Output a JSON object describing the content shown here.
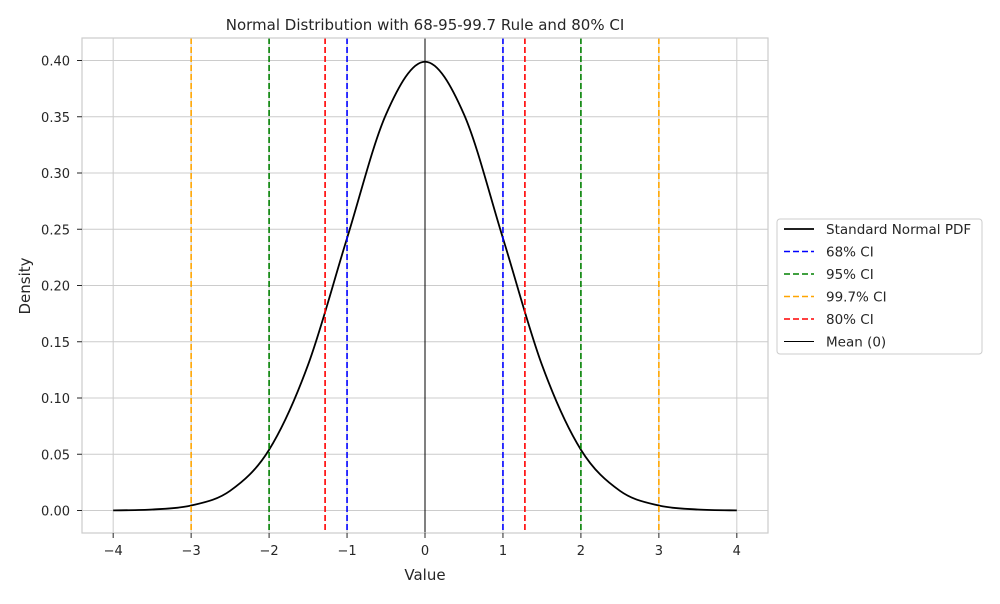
{
  "chart_data": {
    "type": "line",
    "title": "Normal Distribution with 68-95-99.7 Rule and 80% CI",
    "xlabel": "Value",
    "ylabel": "Density",
    "xlim": [
      -4.4,
      4.4
    ],
    "ylim": [
      -0.02,
      0.42
    ],
    "xticks": [
      -4,
      -3,
      -2,
      -1,
      0,
      1,
      2,
      3,
      4
    ],
    "xtick_labels": [
      "−4",
      "−3",
      "−2",
      "−1",
      "0",
      "1",
      "2",
      "3",
      "4"
    ],
    "yticks": [
      0.0,
      0.05,
      0.1,
      0.15,
      0.2,
      0.25,
      0.3,
      0.35,
      0.4
    ],
    "ytick_labels": [
      "0.00",
      "0.05",
      "0.10",
      "0.15",
      "0.20",
      "0.25",
      "0.30",
      "0.35",
      "0.40"
    ],
    "grid": true,
    "legend_position": "right-outside",
    "series": [
      {
        "name": "Standard Normal PDF",
        "color": "#000000",
        "style": "solid",
        "x": [
          -4,
          -3.5,
          -3,
          -2.5,
          -2,
          -1.5,
          -1,
          -0.5,
          0,
          0.5,
          1,
          1.5,
          2,
          2.5,
          3,
          3.5,
          4
        ],
        "y": [
          0.0001,
          0.0009,
          0.0044,
          0.0175,
          0.054,
          0.1295,
          0.242,
          0.3521,
          0.3989,
          0.3521,
          0.242,
          0.1295,
          0.054,
          0.0175,
          0.0044,
          0.0009,
          0.0001
        ]
      }
    ],
    "vlines": [
      {
        "name": "68% CI",
        "x": [
          -1,
          1
        ],
        "color": "#0000ff",
        "style": "dashed"
      },
      {
        "name": "95% CI",
        "x": [
          -2,
          2
        ],
        "color": "#008000",
        "style": "dashed"
      },
      {
        "name": "99.7% CI",
        "x": [
          -3,
          3
        ],
        "color": "#ffa500",
        "style": "dashed"
      },
      {
        "name": "80% CI",
        "x": [
          -1.2816,
          1.2816
        ],
        "color": "#ff0000",
        "style": "dashed"
      },
      {
        "name": "Mean (0)",
        "x": [
          0
        ],
        "color": "#000000",
        "style": "solid-thin"
      }
    ],
    "legend": [
      "Standard Normal PDF",
      "68% CI",
      "95% CI",
      "99.7% CI",
      "80% CI",
      "Mean (0)"
    ]
  }
}
